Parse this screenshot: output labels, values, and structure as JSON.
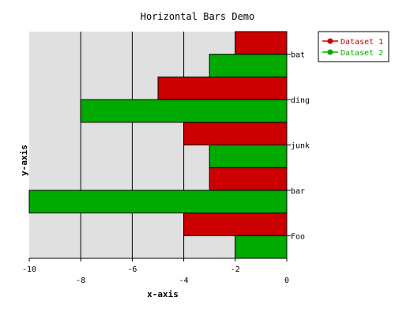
{
  "chart_data": {
    "type": "bar",
    "orientation": "horizontal",
    "title": "Horizontal Bars Demo",
    "xlabel": "x-axis",
    "ylabel": "y-axis",
    "categories": [
      "Foo",
      "bar",
      "junk",
      "ding",
      "bat"
    ],
    "series": [
      {
        "name": "Dataset 1",
        "color": "#cc0000",
        "values": [
          -4,
          -3,
          -4,
          -5,
          -2
        ]
      },
      {
        "name": "Dataset 2",
        "color": "#00aa00",
        "values": [
          -2,
          -10,
          -3,
          -8,
          -3
        ]
      }
    ],
    "xlim": [
      -10,
      0
    ],
    "xticks": [
      -10,
      -8,
      -6,
      -4,
      -2,
      0
    ],
    "xtick_labels": [
      "-10",
      "-8",
      "-6",
      "-4",
      "-2",
      "0"
    ],
    "grid": true,
    "plot_background": "#e0e0e0",
    "legend_position": "top-right"
  }
}
